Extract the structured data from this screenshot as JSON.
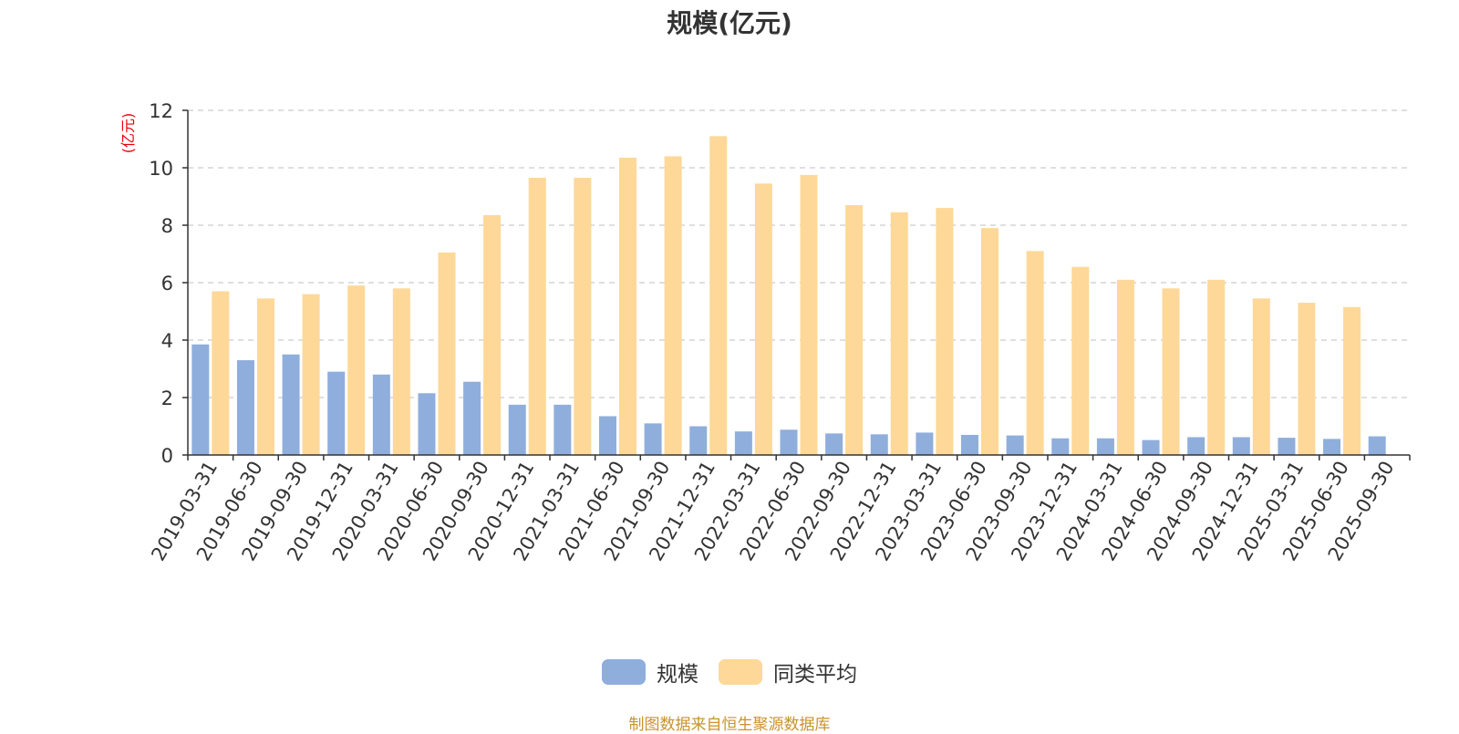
{
  "colors": {
    "scale": "#8faedc",
    "peer_avg": "#fdd898",
    "grid": "#cccccc",
    "axis": "#333333",
    "unit_label": "#e8000b",
    "source_note": "#c9932c"
  },
  "chart_data": {
    "type": "bar",
    "title": "规模(亿元)",
    "ylabel": "(亿元)",
    "xlabel": "",
    "ylim": [
      0,
      12
    ],
    "yticks": [
      "0",
      "2",
      "4",
      "6",
      "8",
      "10",
      "12"
    ],
    "grid": true,
    "legend_position": "bottom",
    "categories": [
      "2019-03-31",
      "2019-06-30",
      "2019-09-30",
      "2019-12-31",
      "2020-03-31",
      "2020-06-30",
      "2020-09-30",
      "2020-12-31",
      "2021-03-31",
      "2021-06-30",
      "2021-09-30",
      "2021-12-31",
      "2022-03-31",
      "2022-06-30",
      "2022-09-30",
      "2022-12-31",
      "2023-03-31",
      "2023-06-30",
      "2023-09-30",
      "2023-12-31",
      "2024-03-31",
      "2024-06-30",
      "2024-09-30",
      "2024-12-31",
      "2025-03-31",
      "2025-06-30",
      "2025-09-30"
    ],
    "series": [
      {
        "name": "规模",
        "values": [
          3.85,
          3.3,
          3.5,
          2.9,
          2.8,
          2.15,
          2.55,
          1.75,
          1.75,
          1.35,
          1.1,
          1.0,
          0.82,
          0.88,
          0.75,
          0.72,
          0.78,
          0.7,
          0.68,
          0.58,
          0.58,
          0.52,
          0.62,
          0.62,
          0.6,
          0.56,
          0.65
        ]
      },
      {
        "name": "同类平均",
        "values": [
          5.7,
          5.45,
          5.6,
          5.9,
          5.8,
          7.05,
          8.35,
          9.65,
          9.65,
          10.35,
          10.4,
          11.1,
          9.45,
          9.75,
          8.7,
          8.45,
          8.6,
          7.9,
          7.1,
          6.55,
          6.1,
          5.8,
          6.1,
          5.45,
          5.3,
          5.15,
          null
        ]
      }
    ]
  },
  "source_note": "制图数据来自恒生聚源数据库"
}
